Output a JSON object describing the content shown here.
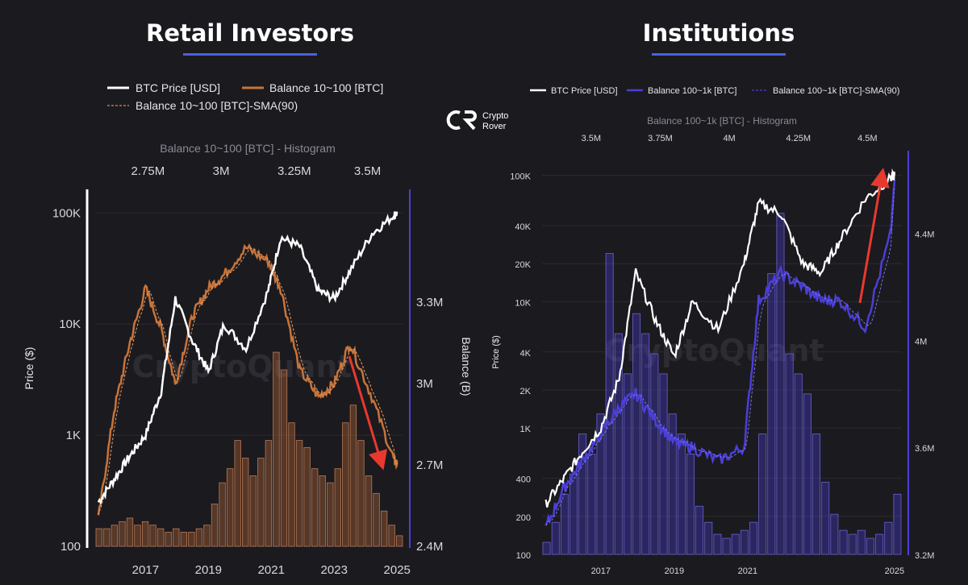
{
  "brand": {
    "name_line1": "Crypto",
    "name_line2": "Rover",
    "watermark": "CryptoQuant"
  },
  "colors": {
    "background": "#1b1a1f",
    "price": "#ffffff",
    "retail": "#c8743a",
    "institution": "#4b3fd6",
    "title_underline": "#4a5fe0",
    "arrow": "#e8392f"
  },
  "chart_data": [
    {
      "type": "line",
      "title": "Retail Investors",
      "legend": [
        "BTC Price [USD]",
        "Balance 10~100 [BTC]",
        "Balance 10~100 [BTC]-SMA(90)"
      ],
      "ylabel": "Price ($)",
      "y2label": "Balance (B)",
      "histogram_title": "Balance 10~100 [BTC] - Histogram",
      "yscale": "log",
      "ylim": [
        100,
        150000
      ],
      "yticks": [
        "100K",
        "10K",
        "1K",
        "100"
      ],
      "y2lim": [
        2400000,
        3700000
      ],
      "y2ticks": [
        "3.3M",
        "3M",
        "2.7M",
        "2.4M"
      ],
      "xticks": [
        "2017",
        "2019",
        "2021",
        "2023",
        "2025"
      ],
      "histogram_axis_ticks": [
        "2.75M",
        "3M",
        "3.25M",
        "3.5M"
      ],
      "x": [
        2015.5,
        2016.0,
        2016.5,
        2017.0,
        2017.5,
        2017.95,
        2018.5,
        2019.0,
        2019.5,
        2020.2,
        2020.9,
        2021.3,
        2021.9,
        2022.5,
        2023.0,
        2023.5,
        2024.2,
        2024.9,
        2025.0
      ],
      "series": [
        {
          "name": "BTC Price [USD]",
          "values": [
            250,
            400,
            650,
            1000,
            2500,
            17000,
            7000,
            3700,
            10000,
            6000,
            20000,
            60000,
            50000,
            20000,
            17000,
            30000,
            65000,
            95000,
            100000
          ]
        },
        {
          "name": "Balance 10~100 [BTC]",
          "values": [
            2500000,
            2900000,
            3150000,
            3350000,
            3200000,
            3000000,
            3250000,
            3350000,
            3400000,
            3500000,
            3450000,
            3350000,
            3050000,
            2950000,
            3000000,
            3150000,
            2950000,
            2720000,
            2700000
          ]
        }
      ],
      "histogram": [
        0.05,
        0.05,
        0.06,
        0.07,
        0.08,
        0.06,
        0.07,
        0.06,
        0.05,
        0.04,
        0.05,
        0.04,
        0.04,
        0.05,
        0.06,
        0.12,
        0.18,
        0.22,
        0.3,
        0.25,
        0.2,
        0.25,
        0.3,
        0.55,
        0.5,
        0.35,
        0.3,
        0.28,
        0.22,
        0.2,
        0.18,
        0.22,
        0.35,
        0.4,
        0.3,
        0.2,
        0.15,
        0.1,
        0.06,
        0.03
      ],
      "annotations": [
        {
          "type": "arrow",
          "direction": "down"
        }
      ]
    },
    {
      "type": "line",
      "title": "Institutions",
      "legend": [
        "BTC Price [USD]",
        "Balance 100~1k [BTC]",
        "Balance 100~1k [BTC]-SMA(90)"
      ],
      "ylabel": "Price ($)",
      "histogram_title": "Balance 100~1k [BTC] - Histogram",
      "yscale": "log",
      "ylim": [
        100,
        150000
      ],
      "yticks": [
        "100K",
        "40K",
        "20K",
        "10K",
        "4K",
        "2K",
        "1K",
        "400",
        "200",
        "100"
      ],
      "y2lim": [
        3200000,
        4700000
      ],
      "y2ticks": [
        "4.4M",
        "4M",
        "3.6M",
        "3.2M"
      ],
      "xticks": [
        "2017",
        "2019",
        "2021",
        "2025"
      ],
      "histogram_axis_ticks": [
        "3.5M",
        "3.75M",
        "4M",
        "4.25M",
        "4.5M"
      ],
      "x": [
        2015.5,
        2016.0,
        2016.5,
        2017.0,
        2017.5,
        2017.95,
        2018.5,
        2019.0,
        2019.5,
        2020.2,
        2020.9,
        2021.3,
        2021.9,
        2022.5,
        2023.0,
        2023.5,
        2024.2,
        2024.9,
        2025.0
      ],
      "series": [
        {
          "name": "BTC Price [USD]",
          "values": [
            250,
            400,
            650,
            1000,
            2500,
            17000,
            7000,
            3700,
            10000,
            6000,
            20000,
            60000,
            50000,
            20000,
            17000,
            30000,
            65000,
            95000,
            100000
          ]
        },
        {
          "name": "Balance 100~1k [BTC]",
          "values": [
            3300000,
            3450000,
            3550000,
            3650000,
            3750000,
            3800000,
            3700000,
            3620000,
            3600000,
            3550000,
            3600000,
            4150000,
            4250000,
            4200000,
            4150000,
            4150000,
            4050000,
            4400000,
            4600000
          ]
        }
      ],
      "histogram": [
        0.03,
        0.08,
        0.15,
        0.2,
        0.3,
        0.25,
        0.35,
        0.75,
        0.55,
        0.45,
        0.6,
        0.55,
        0.5,
        0.45,
        0.35,
        0.3,
        0.25,
        0.12,
        0.08,
        0.05,
        0.04,
        0.05,
        0.06,
        0.08,
        0.3,
        0.7,
        0.85,
        0.5,
        0.45,
        0.4,
        0.3,
        0.18,
        0.1,
        0.06,
        0.05,
        0.06,
        0.04,
        0.05,
        0.08,
        0.15
      ],
      "annotations": [
        {
          "type": "arrow",
          "direction": "up"
        }
      ]
    }
  ]
}
